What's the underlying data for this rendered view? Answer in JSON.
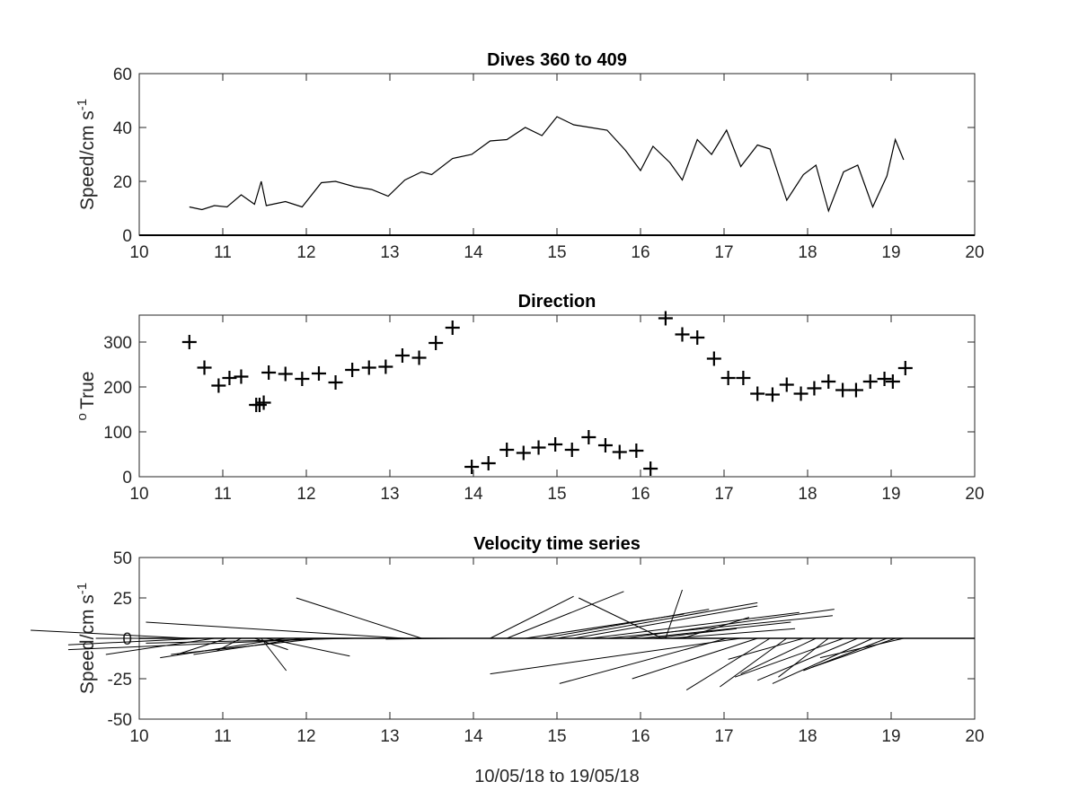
{
  "figure_caption": "10/05/18 to 19/05/18",
  "chart_data": [
    {
      "type": "line",
      "title": "Dives 360 to 409",
      "ylabel": "Speed/cm s",
      "ylabel_sup": "-1",
      "xlabel": "",
      "xlim": [
        10,
        20
      ],
      "ylim": [
        0,
        60
      ],
      "xticks": [
        "10",
        "11",
        "12",
        "13",
        "14",
        "15",
        "16",
        "17",
        "18",
        "19",
        "20"
      ],
      "yticks": [
        "0",
        "20",
        "40",
        "60"
      ],
      "grid": false,
      "series": [
        {
          "color": "#000000",
          "x": [
            10.6,
            10.75,
            10.9,
            11.05,
            11.22,
            11.38,
            11.46,
            11.52,
            11.75,
            11.95,
            12.18,
            12.35,
            12.58,
            12.78,
            12.98,
            13.18,
            13.38,
            13.5,
            13.75,
            13.98,
            14.2,
            14.4,
            14.62,
            14.82,
            15.0,
            15.2,
            15.4,
            15.6,
            15.82,
            16.0,
            16.15,
            16.35,
            16.5,
            16.68,
            16.85,
            17.03,
            17.2,
            17.4,
            17.55,
            17.75,
            17.95,
            18.1,
            18.25,
            18.43,
            18.6,
            18.78,
            18.95,
            19.05,
            19.15
          ],
          "y": [
            10.5,
            9.5,
            11,
            10.5,
            15,
            11.5,
            20,
            11,
            12.5,
            10.5,
            19.5,
            20,
            18,
            17,
            14.5,
            20.5,
            23.5,
            22.5,
            28.5,
            30,
            35,
            35.5,
            40,
            37,
            44,
            41,
            40,
            39,
            31.5,
            24,
            33,
            27,
            20.5,
            35.5,
            30,
            39,
            25.5,
            33.5,
            32,
            13,
            22.5,
            26,
            9,
            23.5,
            26,
            10.5,
            22,
            35.5,
            28
          ]
        }
      ]
    },
    {
      "type": "scatter",
      "title": "Direction",
      "ylabel": "True",
      "ylabel_sup": "o",
      "xlabel": "",
      "xlim": [
        10,
        20
      ],
      "ylim": [
        0,
        360
      ],
      "xticks": [
        "10",
        "11",
        "12",
        "13",
        "14",
        "15",
        "16",
        "17",
        "18",
        "19",
        "20"
      ],
      "yticks": [
        "0",
        "100",
        "200",
        "300"
      ],
      "grid": false,
      "marker": "+",
      "series": [
        {
          "color": "#000000",
          "x": [
            10.6,
            10.78,
            10.95,
            11.08,
            11.22,
            11.4,
            11.44,
            11.49,
            11.55,
            11.75,
            11.95,
            12.15,
            12.35,
            12.55,
            12.75,
            12.95,
            13.15,
            13.35,
            13.55,
            13.75,
            13.98,
            14.18,
            14.4,
            14.6,
            14.78,
            14.98,
            15.18,
            15.38,
            15.58,
            15.75,
            15.95,
            16.12,
            16.3,
            16.5,
            16.68,
            16.88,
            17.05,
            17.23,
            17.4,
            17.58,
            17.75,
            17.92,
            18.08,
            18.25,
            18.42,
            18.58,
            18.75,
            18.92,
            19.02,
            19.17
          ],
          "y": [
            300,
            243,
            203,
            220,
            223,
            160,
            160,
            165,
            232,
            229,
            218,
            230,
            210,
            238,
            243,
            245,
            270,
            265,
            298,
            332,
            22,
            30,
            60,
            53,
            65,
            72,
            60,
            88,
            70,
            55,
            58,
            18,
            353,
            317,
            310,
            263,
            220,
            220,
            185,
            183,
            205,
            185,
            197,
            212,
            193,
            193,
            212,
            218,
            212,
            242
          ]
        }
      ]
    },
    {
      "type": "line",
      "title": "Velocity time series",
      "subtype": "stick-vectors",
      "ylabel": "Speed/cm s",
      "ylabel_sup": "-1",
      "xlabel": "10/05/18 to 19/05/18",
      "xlim": [
        10,
        20
      ],
      "ylim": [
        -50,
        50
      ],
      "xticks": [
        "10",
        "11",
        "12",
        "13",
        "14",
        "15",
        "16",
        "17",
        "18",
        "19",
        "20"
      ],
      "yticks": [
        "-50",
        "-25",
        "0",
        "25",
        "50"
      ],
      "grid": false,
      "sticks": {
        "color": "#000000",
        "t": [
          10.6,
          10.75,
          10.9,
          11.05,
          11.22,
          11.38,
          11.46,
          11.52,
          11.75,
          11.95,
          12.18,
          12.35,
          12.58,
          12.78,
          12.98,
          13.18,
          13.38,
          13.5,
          13.75,
          13.98,
          14.2,
          14.4,
          14.62,
          14.82,
          15.0,
          15.2,
          15.4,
          15.6,
          15.82,
          16.0,
          16.15,
          16.26,
          16.3,
          16.35,
          16.5,
          16.68,
          16.85,
          17.03,
          17.2,
          17.4,
          17.55,
          17.75,
          17.95,
          18.1,
          18.25,
          18.43,
          18.6,
          18.78,
          18.95,
          19.05,
          19.15
        ],
        "u": [
          -1.9,
          -1.6,
          -1.3,
          -0.6,
          -0.3,
          0.4,
          0.3,
          1.0,
          -1.5,
          -1.3,
          -1.8,
          -3.2,
          -2.5,
          -2.0,
          -3.5,
          -3.1,
          -1.5,
          -1.0,
          -0.8,
          -1.2,
          1.0,
          1.4,
          1.9,
          2.0,
          2.4,
          2.2,
          2.5,
          2.7,
          2.5,
          1.8,
          1.0,
          -1.0,
          0.2,
          1.5,
          0.8,
          1.8,
          -1.6,
          -2.0,
          -3.0,
          -1.5,
          -1.0,
          -0.8,
          -0.9,
          -0.9,
          -0.6,
          -1.3,
          -1.2,
          -1.2,
          -1.0,
          -1.0,
          -1.0
        ],
        "v": [
          5,
          -4,
          -10,
          -10,
          -8,
          -7,
          -20,
          -11,
          -12,
          -10,
          -10,
          -7,
          -3,
          0,
          0,
          10,
          25,
          0,
          -0.5,
          0,
          26,
          29,
          15,
          18,
          22,
          20,
          16,
          14,
          18,
          10,
          6,
          25,
          30,
          6,
          13,
          0,
          0,
          -28,
          -22,
          -25,
          -32,
          -30,
          -13,
          -22,
          -24,
          -24,
          -26,
          -28,
          -20,
          -18,
          -12
        ]
      }
    }
  ]
}
